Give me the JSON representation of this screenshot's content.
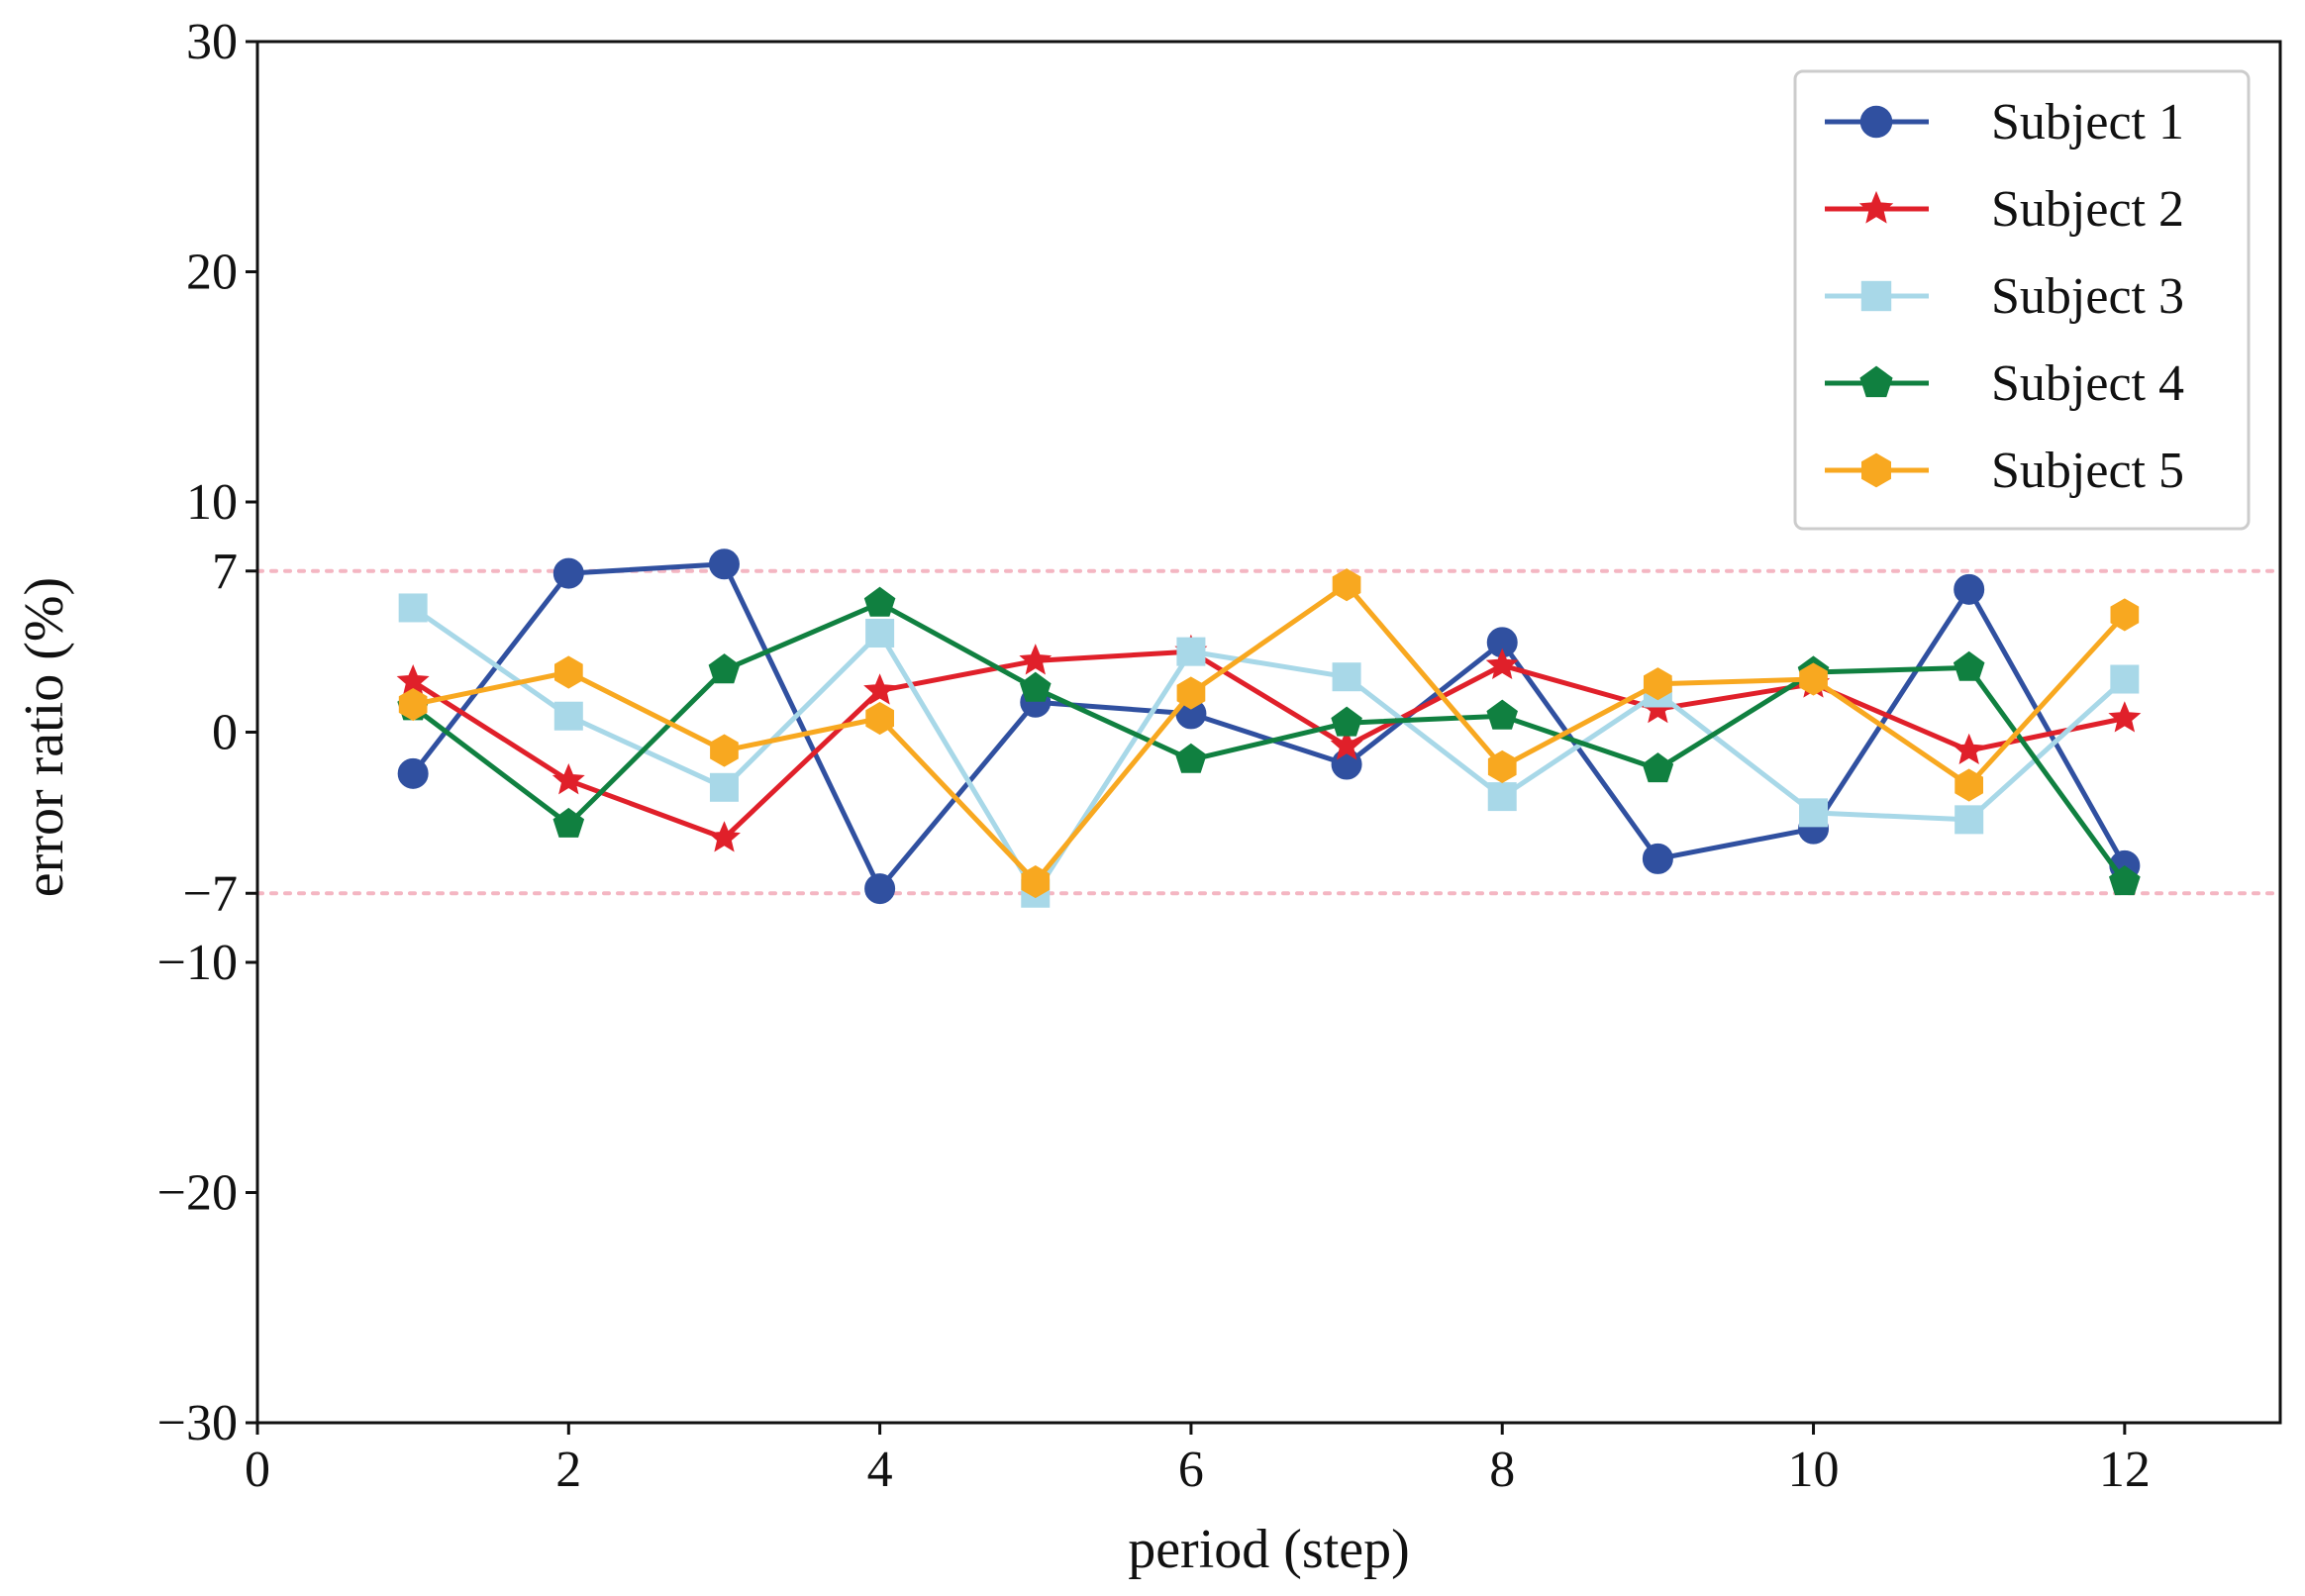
{
  "chart_data": {
    "type": "line",
    "title": "",
    "xlabel": "period (step)",
    "ylabel": "error ratio (%)",
    "xlim": [
      0,
      13
    ],
    "ylim": [
      -30,
      30
    ],
    "xticks": [
      0,
      2,
      4,
      6,
      8,
      10,
      12
    ],
    "xtick_labels": [
      "0",
      "2",
      "4",
      "6",
      "8",
      "10",
      "12"
    ],
    "yticks": [
      -30,
      -20,
      -10,
      -7,
      0,
      7,
      10,
      20,
      30
    ],
    "ytick_labels": [
      "−30",
      "−20",
      "−10",
      "−7",
      "0",
      "7",
      "10",
      "20",
      "30"
    ],
    "reference_lines": [
      {
        "y": 7,
        "color": "#f4b6c2",
        "style": "dotted"
      },
      {
        "y": -7,
        "color": "#f4b6c2",
        "style": "dotted"
      }
    ],
    "legend_position": "top-right",
    "x": [
      1,
      2,
      3,
      4,
      5,
      6,
      7,
      8,
      9,
      10,
      11,
      12
    ],
    "series": [
      {
        "name": "Subject 1",
        "color": "#3050a0",
        "marker": "circle",
        "values": [
          -1.8,
          6.9,
          7.3,
          -6.8,
          1.3,
          0.8,
          -1.4,
          3.9,
          -5.5,
          -4.2,
          6.2,
          -5.8
        ]
      },
      {
        "name": "Subject 2",
        "color": "#e0202a",
        "marker": "star",
        "values": [
          2.2,
          -2.1,
          -4.6,
          1.8,
          3.1,
          3.5,
          -0.6,
          2.9,
          1.0,
          2.1,
          -0.8,
          0.6
        ]
      },
      {
        "name": "Subject 3",
        "color": "#a8d8e8",
        "marker": "square",
        "values": [
          5.4,
          0.7,
          -2.4,
          4.3,
          -7.0,
          3.5,
          2.4,
          -2.8,
          1.7,
          -3.5,
          -3.8,
          2.3
        ]
      },
      {
        "name": "Subject 4",
        "color": "#108040",
        "marker": "pentagon",
        "values": [
          1.1,
          -4.0,
          2.7,
          5.6,
          1.9,
          -1.2,
          0.4,
          0.7,
          -1.6,
          2.6,
          2.8,
          -6.5
        ]
      },
      {
        "name": "Subject 5",
        "color": "#f8a820",
        "marker": "hexagon",
        "values": [
          1.2,
          2.6,
          -0.8,
          0.6,
          -6.5,
          1.7,
          6.4,
          -1.5,
          2.1,
          2.3,
          -2.3,
          5.1
        ]
      }
    ]
  }
}
